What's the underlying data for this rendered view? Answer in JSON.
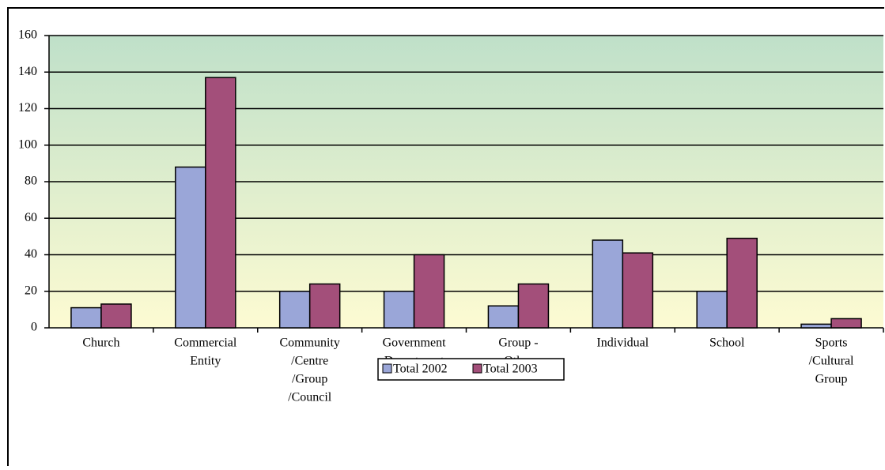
{
  "chart_data": {
    "type": "bar",
    "categories": [
      [
        "Church"
      ],
      [
        "Commercial",
        "Entity"
      ],
      [
        "Community",
        "/Centre",
        "/Group",
        "/Council"
      ],
      [
        "Government",
        "Department"
      ],
      [
        "Group -",
        "Other"
      ],
      [
        "Individual"
      ],
      [
        "School"
      ],
      [
        "Sports",
        "/Cultural",
        "Group"
      ]
    ],
    "series": [
      {
        "name": "Total 2002",
        "color": "#9aa6d8",
        "values": [
          11,
          88,
          20,
          20,
          12,
          48,
          20,
          2
        ]
      },
      {
        "name": "Total 2003",
        "color": "#a34f7a",
        "values": [
          13,
          137,
          24,
          40,
          24,
          41,
          49,
          5
        ]
      }
    ],
    "ylim": [
      0,
      160
    ],
    "yticks": [
      0,
      20,
      40,
      60,
      80,
      100,
      120,
      140,
      160
    ],
    "grid": true,
    "legend": "bottom"
  }
}
